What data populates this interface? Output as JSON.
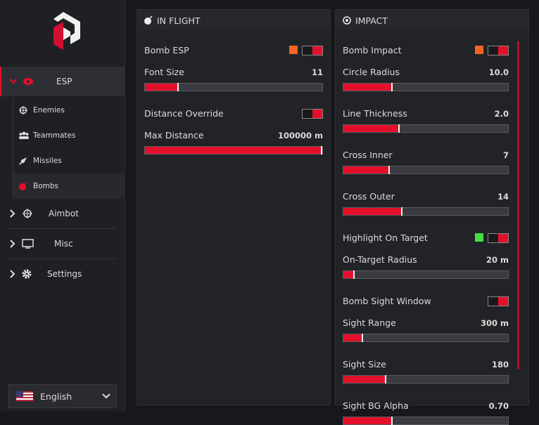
{
  "sidebar": {
    "menu": [
      {
        "label": "ESP",
        "items": [
          "Enemies",
          "Teammates",
          "Missiles",
          "Bombs"
        ]
      },
      {
        "label": "Aimbot"
      },
      {
        "label": "Misc"
      },
      {
        "label": "Settings"
      }
    ],
    "language": "English"
  },
  "panels": [
    {
      "title": "IN FLIGHT",
      "rows": [
        {
          "label": "Bomb ESP",
          "kind": "toggle",
          "swatch": "#f26522"
        },
        {
          "label": "Font Size",
          "kind": "slider",
          "value": "11"
        },
        {
          "label": "Distance Override",
          "kind": "toggle"
        },
        {
          "label": "Max Distance",
          "kind": "slider",
          "value": "100000 m"
        }
      ]
    },
    {
      "title": "IMPACT",
      "rows": [
        {
          "label": "Bomb Impact",
          "kind": "toggle",
          "swatch": "#f26522"
        },
        {
          "label": "Circle Radius",
          "kind": "slider",
          "value": "10.0"
        },
        {
          "label": "Line Thickness",
          "kind": "slider",
          "value": "2.0"
        },
        {
          "label": "Cross Inner",
          "kind": "slider",
          "value": "7"
        },
        {
          "label": "Cross Outer",
          "kind": "slider",
          "value": "14"
        },
        {
          "label": "Highlight On Target",
          "kind": "toggle",
          "swatch": "#44e044"
        },
        {
          "label": "On-Target Radius",
          "kind": "slider",
          "value": "20 m"
        },
        {
          "label": "Bomb Sight Window",
          "kind": "toggle"
        },
        {
          "label": "Sight Range",
          "kind": "slider",
          "value": "300 m"
        },
        {
          "label": "Sight Size",
          "kind": "slider",
          "value": "180"
        },
        {
          "label": "Sight BG Alpha",
          "kind": "slider",
          "value": "0.70"
        }
      ]
    }
  ]
}
